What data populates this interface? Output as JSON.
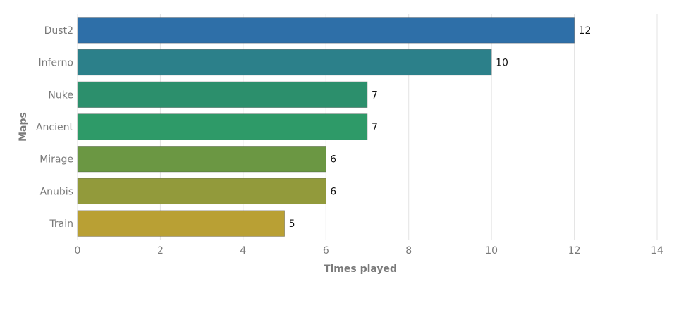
{
  "chart_data": {
    "type": "bar",
    "orientation": "horizontal",
    "categories": [
      "Dust2",
      "Inferno",
      "Nuke",
      "Ancient",
      "Mirage",
      "Anubis",
      "Train"
    ],
    "values": [
      12,
      10,
      7,
      7,
      6,
      6,
      5
    ],
    "colors": [
      "#2e6fa8",
      "#2c808a",
      "#2c8f6c",
      "#2e9a68",
      "#6b9743",
      "#929a3b",
      "#b9a034"
    ],
    "xlabel": "Times played",
    "ylabel": "Maps",
    "xlim": [
      0,
      14
    ],
    "xticks": [
      0,
      2,
      4,
      6,
      8,
      10,
      12,
      14
    ],
    "grid": "vertical",
    "data_labels": true
  }
}
